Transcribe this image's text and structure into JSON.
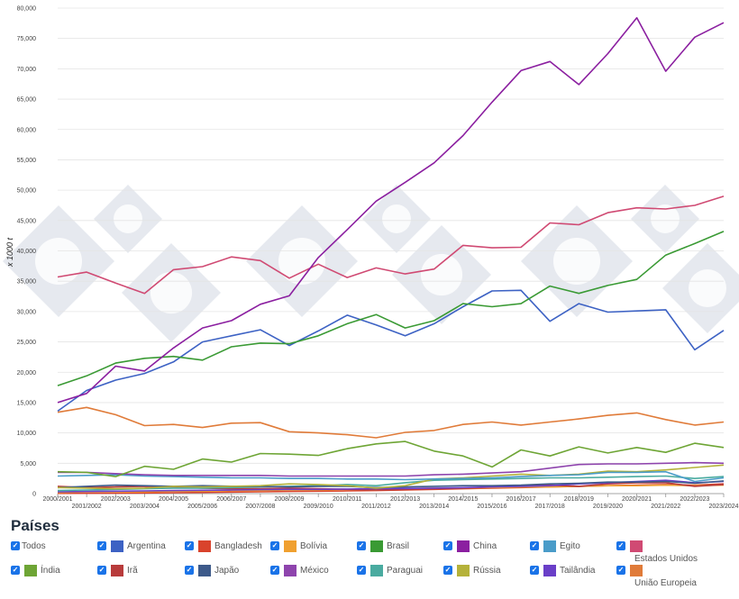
{
  "chart_data": {
    "type": "line",
    "ylabel": "x 1000 t",
    "ylim": [
      0,
      80000
    ],
    "yticks": [
      0,
      5000,
      10000,
      15000,
      20000,
      25000,
      30000,
      35000,
      40000,
      45000,
      50000,
      55000,
      60000,
      65000,
      70000,
      75000,
      80000
    ],
    "ytick_labels": [
      "0",
      "5,000",
      "10,000",
      "15,000",
      "20,000",
      "25,000",
      "30,000",
      "35,000",
      "40,000",
      "45,000",
      "50,000",
      "55,000",
      "60,000",
      "65,000",
      "70,000",
      "75,000",
      "80,000"
    ],
    "categories": [
      "2000/2001",
      "2001/2002",
      "2002/2003",
      "2003/2004",
      "2004/2005",
      "2005/2006",
      "2006/2007",
      "2007/2008",
      "2008/2009",
      "2009/2010",
      "2010/2011",
      "2011/2012",
      "2012/2013",
      "2013/2014",
      "2014/2015",
      "2015/2016",
      "2016/2017",
      "2017/2018",
      "2018/2019",
      "2019/2020",
      "2020/2021",
      "2021/2022",
      "2022/2023",
      "2023/2024"
    ],
    "grid": true,
    "series": [
      {
        "name": "China",
        "color": "#8b1fa0",
        "values": [
          15000,
          16500,
          21000,
          20200,
          24000,
          27300,
          28500,
          31200,
          32600,
          38900,
          43500,
          48200,
          51300,
          54500,
          59000,
          64500,
          69700,
          71200,
          67400,
          72500,
          78400,
          69600,
          75200,
          77600
        ]
      },
      {
        "name": "Estados Unidos",
        "color": "#d04a73",
        "values": [
          35700,
          36500,
          34700,
          33000,
          36900,
          37400,
          39000,
          38400,
          35500,
          37800,
          35600,
          37200,
          36200,
          37000,
          40900,
          40500,
          40600,
          44600,
          44300,
          46300,
          47100,
          46900,
          47500,
          49000
        ]
      },
      {
        "name": "Brasil",
        "color": "#3a9a34",
        "values": [
          17800,
          19400,
          21500,
          22300,
          22600,
          22000,
          24200,
          24800,
          24700,
          26000,
          28000,
          29500,
          27300,
          28500,
          31300,
          30800,
          31300,
          34200,
          33000,
          34300,
          35300,
          39300,
          41200,
          43200
        ]
      },
      {
        "name": "Argentina",
        "color": "#3d62c4",
        "values": [
          13600,
          17000,
          18700,
          19800,
          21700,
          25000,
          26000,
          27000,
          24400,
          26800,
          29400,
          27800,
          26000,
          28000,
          30800,
          33400,
          33500,
          28400,
          31300,
          29900,
          30100,
          30300,
          23700,
          26900
        ]
      },
      {
        "name": "União Europeia",
        "color": "#e07b39",
        "values": [
          13400,
          14200,
          13000,
          11200,
          11400,
          10900,
          11600,
          11700,
          10200,
          10000,
          9700,
          9200,
          10100,
          10400,
          11400,
          11800,
          11300,
          11800,
          12300,
          12900,
          13300,
          12200,
          11300,
          11800
        ]
      },
      {
        "name": "Índia",
        "color": "#6ea535",
        "values": [
          3600,
          3500,
          2800,
          4500,
          4000,
          5700,
          5200,
          6600,
          6500,
          6300,
          7400,
          8200,
          8600,
          7000,
          6200,
          4400,
          7200,
          6200,
          7700,
          6700,
          7600,
          6800,
          8300,
          7600
        ]
      },
      {
        "name": "México",
        "color": "#8e44ad",
        "values": [
          3500,
          3500,
          3300,
          3100,
          3000,
          3000,
          3000,
          3000,
          2900,
          2900,
          2900,
          2900,
          2900,
          3100,
          3200,
          3400,
          3600,
          4200,
          4800,
          4900,
          4900,
          5000,
          5100,
          5000
        ]
      },
      {
        "name": "Egito",
        "color": "#4a9cc9",
        "values": [
          2900,
          3000,
          3100,
          2900,
          2800,
          2700,
          2600,
          2600,
          2500,
          2500,
          2400,
          2400,
          2300,
          2400,
          2500,
          2600,
          2800,
          3000,
          3100,
          3500,
          3500,
          3600,
          2000,
          2600
        ]
      },
      {
        "name": "Rússia",
        "color": "#b5b23a",
        "values": [
          1000,
          900,
          800,
          900,
          1200,
          1100,
          1200,
          1300,
          1600,
          1500,
          1300,
          900,
          1300,
          2400,
          2600,
          2900,
          3200,
          3000,
          3200,
          3700,
          3600,
          3900,
          4300,
          4700
        ]
      },
      {
        "name": "Japão",
        "color": "#3d5a8a",
        "values": [
          1000,
          1200,
          1400,
          1300,
          1200,
          1300,
          1200,
          1200,
          1100,
          1200,
          1200,
          1000,
          1100,
          1200,
          1300,
          1300,
          1400,
          1600,
          1700,
          1900,
          1900,
          2000,
          1700,
          2100
        ]
      },
      {
        "name": "Paraguai",
        "color": "#4aaba0",
        "values": [
          500,
          600,
          700,
          800,
          900,
          900,
          1000,
          1100,
          1200,
          1300,
          1500,
          1300,
          1800,
          2200,
          2300,
          2400,
          2500,
          2600,
          2600,
          2700,
          2800,
          2900,
          2500,
          2800
        ]
      },
      {
        "name": "Tailândia",
        "color": "#6a3fc8",
        "values": [
          300,
          350,
          400,
          450,
          500,
          550,
          600,
          650,
          700,
          700,
          750,
          800,
          850,
          900,
          1000,
          1100,
          1200,
          1300,
          1600,
          1800,
          2000,
          2200,
          1800,
          2000
        ]
      },
      {
        "name": "Irã",
        "color": "#b83b3b",
        "values": [
          1200,
          1000,
          1100,
          1200,
          1100,
          900,
          800,
          800,
          900,
          800,
          700,
          600,
          700,
          800,
          900,
          1100,
          1300,
          1400,
          1200,
          1600,
          1800,
          1800,
          1200,
          1500
        ]
      },
      {
        "name": "Bolívia",
        "color": "#f0a030",
        "values": [
          200,
          300,
          300,
          300,
          400,
          400,
          500,
          500,
          600,
          600,
          700,
          600,
          800,
          900,
          900,
          1000,
          1100,
          1100,
          1200,
          1300,
          1300,
          1400,
          1300,
          1400
        ]
      },
      {
        "name": "Bangladesh",
        "color": "#d9432c",
        "values": [
          50,
          60,
          80,
          100,
          150,
          200,
          250,
          300,
          350,
          400,
          450,
          500,
          600,
          700,
          800,
          900,
          1000,
          1100,
          1200,
          1300,
          1400,
          1500,
          1400,
          1600
        ]
      }
    ]
  },
  "legend": {
    "title": "Países",
    "check_glyph": "✓",
    "items": [
      {
        "label": "Todos",
        "color": ""
      },
      {
        "label": "Argentina",
        "color": "#3d62c4"
      },
      {
        "label": "Bangladesh",
        "color": "#d9432c"
      },
      {
        "label": "Bolívia",
        "color": "#f0a030"
      },
      {
        "label": "Brasil",
        "color": "#3a9a34"
      },
      {
        "label": "China",
        "color": "#8b1fa0"
      },
      {
        "label": "Egito",
        "color": "#4a9cc9"
      },
      {
        "label": "Estados Unidos",
        "color": "#d04a73"
      },
      {
        "label": "Índia",
        "color": "#6ea535"
      },
      {
        "label": "Irã",
        "color": "#b83b3b"
      },
      {
        "label": "Japão",
        "color": "#3d5a8a"
      },
      {
        "label": "México",
        "color": "#8e44ad"
      },
      {
        "label": "Paraguai",
        "color": "#4aaba0"
      },
      {
        "label": "Rússia",
        "color": "#b5b23a"
      },
      {
        "label": "Tailândia",
        "color": "#6a3fc8"
      },
      {
        "label": "União Europeia",
        "color": "#e07b39"
      }
    ]
  }
}
